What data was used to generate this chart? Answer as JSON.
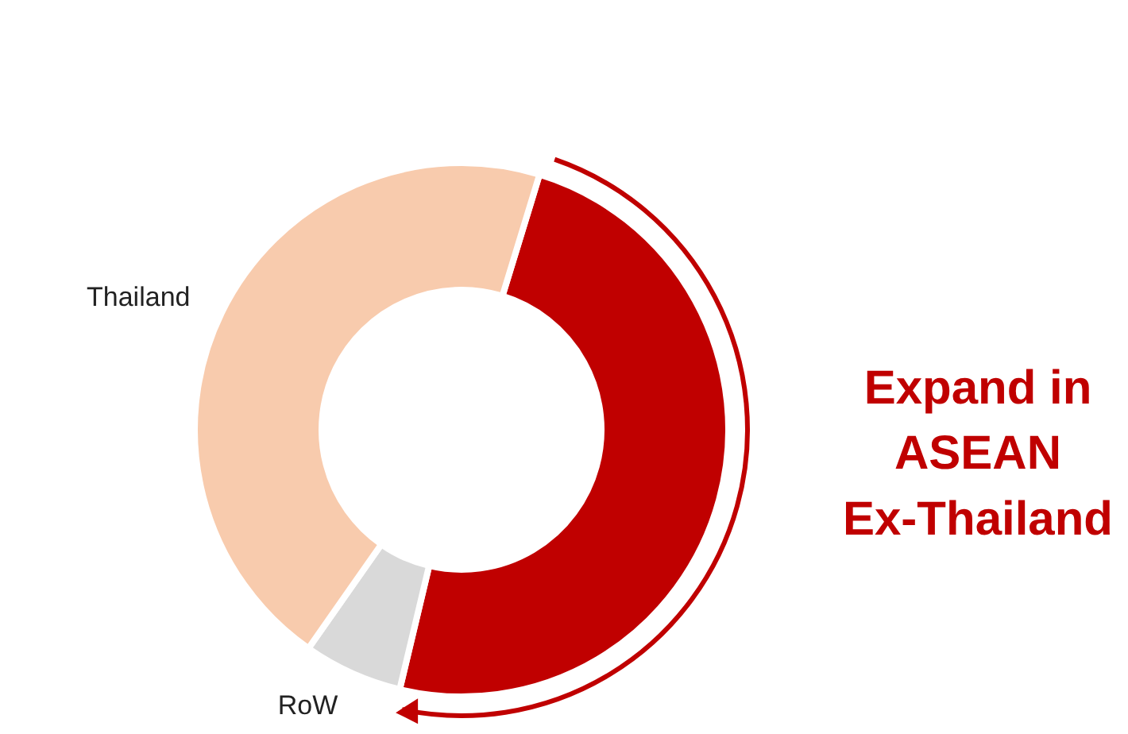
{
  "chart_data": {
    "type": "donut",
    "categories": [
      null,
      "RoW",
      "Thailand"
    ],
    "values": [
      49,
      6,
      45
    ],
    "colors": [
      "#c00000",
      "#d9d9d9",
      "#f8cbad"
    ],
    "annotations": [
      "Expand in\nASEAN\nEx-Thailand"
    ]
  }
}
